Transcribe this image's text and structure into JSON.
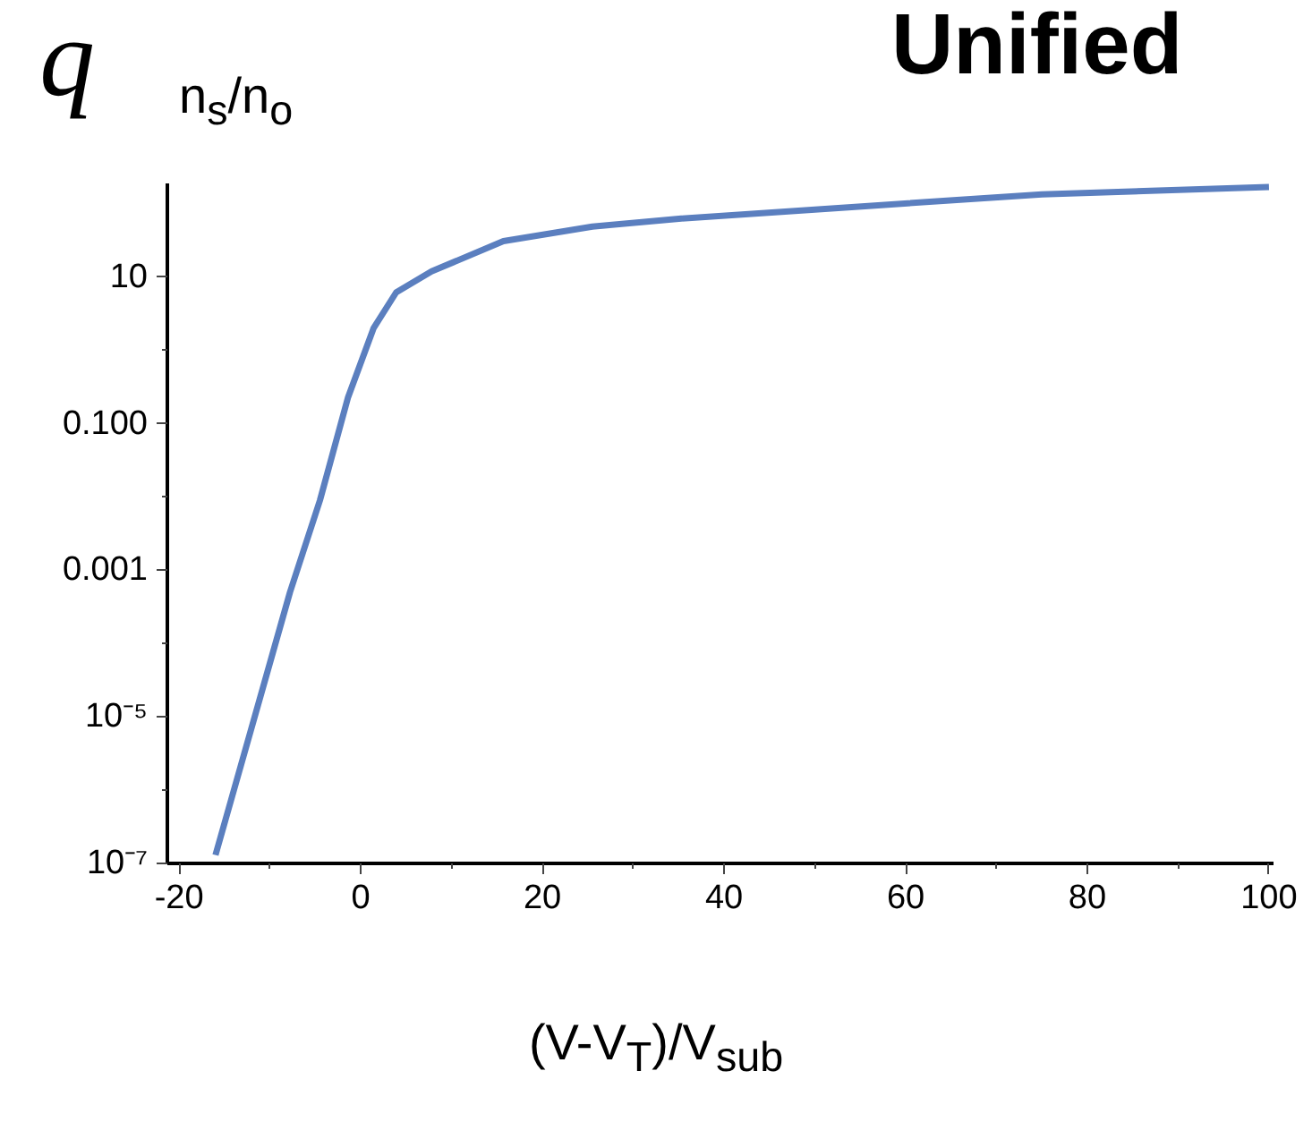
{
  "chart_data": {
    "type": "line",
    "title": "Unified",
    "ylabel": "n$_{s}$/n$_{o}$",
    "xlabel": "(V-V$_{T}$)/V$_{sub}$",
    "annotations": [
      "q"
    ],
    "x": [
      -16,
      -7.8,
      -4.5,
      -1.4,
      1.4,
      3.9,
      7.8,
      15.7,
      25.5,
      35.3,
      55.5,
      75,
      100
    ],
    "series": [
      {
        "color": "#5b7fbf",
        "values": [
          1.3e-07,
          0.0005,
          0.009,
          0.23,
          2.0,
          6.2,
          12,
          31,
          49,
          63,
          93,
          135,
          170
        ]
      }
    ],
    "xlim": [
      -21.3,
      100.5
    ],
    "ylim": [
      1e-07,
      190
    ],
    "xticks": [
      -20,
      0,
      20,
      40,
      60,
      80,
      100
    ],
    "yticks": [
      {
        "value": 1e-07,
        "label": "10⁻⁷"
      },
      {
        "value": 1e-05,
        "label": "10⁻⁵"
      },
      {
        "value": 0.001,
        "label": "0.001"
      },
      {
        "value": 0.1,
        "label": "0.100"
      },
      {
        "value": 10,
        "label": "10"
      }
    ],
    "log": "y",
    "grid": false,
    "marker": "none",
    "line_style": "solid"
  }
}
